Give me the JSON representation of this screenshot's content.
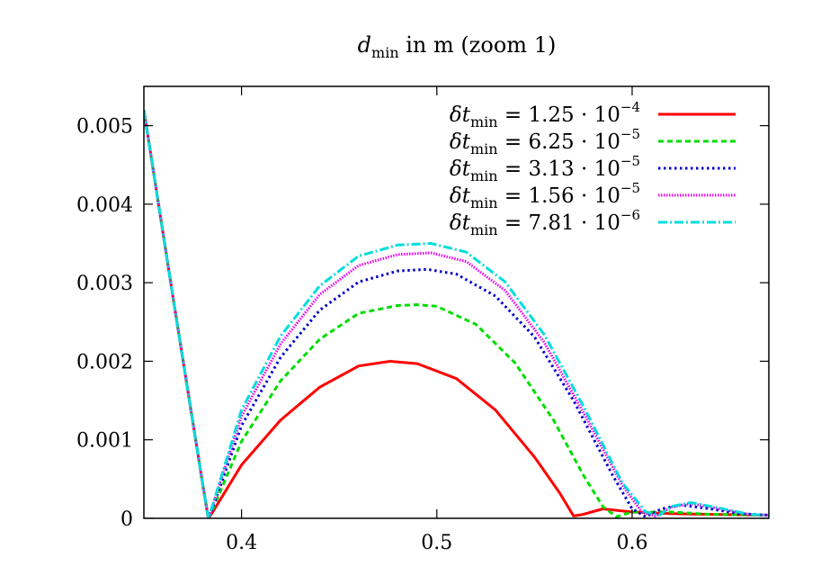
{
  "chart_data": {
    "type": "line",
    "title": {
      "var": "d",
      "sub": "min",
      "rest": " in m (zoom 1)"
    },
    "xlabel": "",
    "ylabel": "",
    "xlim": [
      0.35,
      0.67
    ],
    "ylim": [
      0,
      0.0055
    ],
    "x_ticks": [
      0.4,
      0.5,
      0.6
    ],
    "x_tick_labels": [
      "0.4",
      "0.5",
      "0.6"
    ],
    "y_ticks": [
      0,
      0.001,
      0.002,
      0.003,
      0.004,
      0.005
    ],
    "y_tick_labels": [
      "0",
      "0.001",
      "0.002",
      "0.003",
      "0.004",
      "0.005"
    ],
    "grid": false,
    "legend_position": "top-right",
    "series": [
      {
        "name": "δt_min = 1.25 · 10^-4",
        "label": {
          "lhs_var": "δt",
          "lhs_sub": "min",
          "mant": "1.25",
          "exp": "−4"
        },
        "color": "#ff0000",
        "dash": "solid",
        "x": [
          0.35,
          0.365,
          0.38,
          0.383,
          0.385,
          0.4,
          0.42,
          0.44,
          0.46,
          0.476,
          0.49,
          0.51,
          0.53,
          0.55,
          0.563,
          0.57,
          0.575,
          0.585,
          0.6,
          0.62,
          0.64,
          0.67
        ],
        "y": [
          0.0052,
          0.0028,
          0.00045,
          0.0,
          7e-05,
          0.00068,
          0.00125,
          0.00167,
          0.00194,
          0.002,
          0.00197,
          0.00178,
          0.00138,
          0.00078,
          0.00032,
          3e-05,
          5e-05,
          0.00012,
          8e-05,
          6e-05,
          5e-05,
          4e-05
        ]
      },
      {
        "name": "δt_min = 6.25 · 10^-5",
        "label": {
          "lhs_var": "δt",
          "lhs_sub": "min",
          "mant": "6.25",
          "exp": "−5"
        },
        "color": "#00dd00",
        "dash": "6,4",
        "x": [
          0.35,
          0.365,
          0.38,
          0.383,
          0.385,
          0.4,
          0.42,
          0.44,
          0.46,
          0.48,
          0.49,
          0.5,
          0.52,
          0.54,
          0.56,
          0.575,
          0.585,
          0.592,
          0.6,
          0.62,
          0.64,
          0.67
        ],
        "y": [
          0.0052,
          0.0028,
          0.00045,
          0.0,
          0.0001,
          0.00098,
          0.00175,
          0.00228,
          0.00261,
          0.00271,
          0.00272,
          0.0027,
          0.00247,
          0.00198,
          0.00124,
          0.00055,
          0.00015,
          2e-05,
          8e-05,
          8e-05,
          5e-05,
          4e-05
        ]
      },
      {
        "name": "δt_min = 3.13 · 10^-5",
        "label": {
          "lhs_var": "δt",
          "lhs_sub": "min",
          "mant": "3.13",
          "exp": "−5"
        },
        "color": "#0000cc",
        "dash": "2.5,3.5",
        "x": [
          0.35,
          0.365,
          0.38,
          0.383,
          0.385,
          0.4,
          0.42,
          0.44,
          0.46,
          0.48,
          0.495,
          0.51,
          0.53,
          0.55,
          0.57,
          0.59,
          0.6,
          0.607,
          0.615,
          0.625,
          0.64,
          0.655,
          0.67
        ],
        "y": [
          0.0052,
          0.0028,
          0.00045,
          0.0,
          0.00012,
          0.00118,
          0.00205,
          0.00265,
          0.00301,
          0.00315,
          0.00317,
          0.00311,
          0.00283,
          0.00231,
          0.0015,
          0.00055,
          0.00012,
          2e-05,
          0.00012,
          0.00017,
          0.00012,
          6e-05,
          4e-05
        ]
      },
      {
        "name": "δt_min = 1.56 · 10^-5",
        "label": {
          "lhs_var": "δt",
          "lhs_sub": "min",
          "mant": "1.56",
          "exp": "−5"
        },
        "color": "#ee00ee",
        "dash": "1.5,1.5",
        "x": [
          0.35,
          0.365,
          0.38,
          0.383,
          0.385,
          0.4,
          0.42,
          0.44,
          0.46,
          0.48,
          0.497,
          0.515,
          0.535,
          0.555,
          0.575,
          0.595,
          0.605,
          0.612,
          0.62,
          0.63,
          0.645,
          0.66,
          0.67
        ],
        "y": [
          0.0052,
          0.0028,
          0.00045,
          0.0,
          0.00014,
          0.0013,
          0.00222,
          0.00285,
          0.00322,
          0.00336,
          0.00338,
          0.00327,
          0.0029,
          0.00224,
          0.00135,
          0.00042,
          8e-05,
          3e-05,
          0.00014,
          0.00019,
          0.00012,
          5e-05,
          4e-05
        ]
      },
      {
        "name": "δt_min = 7.81 · 10^-6",
        "label": {
          "lhs_var": "δt",
          "lhs_sub": "min",
          "mant": "7.81",
          "exp": "−6"
        },
        "color": "#00dddd",
        "dash": "10,3,2,3",
        "x": [
          0.35,
          0.365,
          0.38,
          0.383,
          0.385,
          0.4,
          0.42,
          0.44,
          0.46,
          0.48,
          0.497,
          0.515,
          0.535,
          0.555,
          0.575,
          0.595,
          0.607,
          0.614,
          0.62,
          0.63,
          0.645,
          0.66,
          0.67
        ],
        "y": [
          0.0052,
          0.0028,
          0.00045,
          0.0,
          0.00015,
          0.00138,
          0.00232,
          0.00296,
          0.00334,
          0.00348,
          0.0035,
          0.00339,
          0.00301,
          0.00234,
          0.00143,
          0.00045,
          8e-05,
          4e-05,
          0.00015,
          0.0002,
          0.00013,
          5e-05,
          4e-05
        ]
      }
    ]
  }
}
